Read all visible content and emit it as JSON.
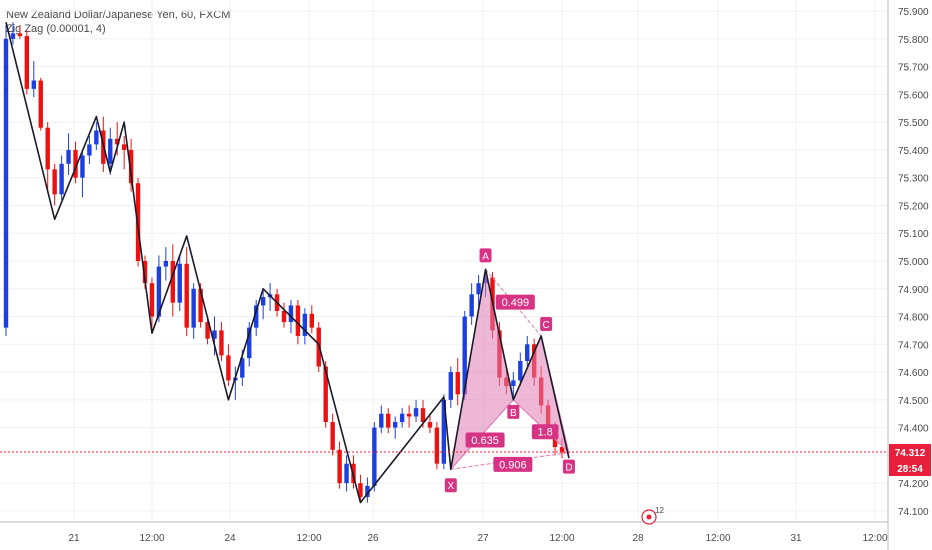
{
  "header": {
    "symbol_line": "New Zealand Dollar/Japanese Yen, 60, FXCM",
    "indicator_line": "Zig Zag (0.00001, 4)"
  },
  "chart_data": {
    "type": "candlestick",
    "price_axis": {
      "ticks": [
        "75.900",
        "75.800",
        "75.700",
        "75.600",
        "75.500",
        "75.400",
        "75.300",
        "75.200",
        "75.100",
        "75.000",
        "74.900",
        "74.800",
        "74.700",
        "74.600",
        "74.500",
        "74.400",
        "74.300",
        "74.200",
        "74.100"
      ],
      "ylim": [
        74.06,
        75.94
      ]
    },
    "time_axis": {
      "ticks": [
        "21",
        "12:00",
        "24",
        "12:00",
        "26",
        "27",
        "12:00",
        "28",
        "12:00",
        "31",
        "12:00"
      ],
      "xlim": [
        0,
        91
      ]
    },
    "current_price": {
      "label": "74.312",
      "value": 74.312,
      "color": "#e91e3a"
    },
    "countdown": {
      "label": "28:54"
    },
    "colors": {
      "up": "#1e3fe0",
      "down": "#ee1111",
      "zigzag": "#1a1a2a",
      "pattern": "#d63384",
      "pattern_fill": "#e07bb5",
      "grid": "#eef0f3"
    },
    "candles": [
      [
        74.76,
        75.85,
        74.73,
        75.8
      ],
      [
        75.8,
        75.86,
        75.78,
        75.82
      ],
      [
        75.82,
        75.85,
        75.8,
        75.81
      ],
      [
        75.81,
        75.83,
        75.6,
        75.62
      ],
      [
        75.62,
        75.72,
        75.59,
        75.65
      ],
      [
        75.65,
        75.66,
        75.47,
        75.48
      ],
      [
        75.48,
        75.5,
        75.25,
        75.33
      ],
      [
        75.33,
        75.35,
        75.2,
        75.24
      ],
      [
        75.24,
        75.38,
        75.22,
        75.35
      ],
      [
        75.35,
        75.46,
        75.31,
        75.4
      ],
      [
        75.4,
        75.43,
        75.28,
        75.3
      ],
      [
        75.3,
        75.4,
        75.23,
        75.38
      ],
      [
        75.38,
        75.45,
        75.35,
        75.42
      ],
      [
        75.42,
        75.5,
        75.4,
        75.47
      ],
      [
        75.47,
        75.52,
        75.32,
        75.35
      ],
      [
        75.35,
        75.48,
        75.31,
        75.44
      ],
      [
        75.44,
        75.5,
        75.38,
        75.42
      ],
      [
        75.42,
        75.45,
        75.33,
        75.4
      ],
      [
        75.4,
        75.44,
        75.25,
        75.28
      ],
      [
        75.28,
        75.3,
        74.98,
        75.0
      ],
      [
        75.0,
        75.02,
        74.9,
        74.92
      ],
      [
        74.92,
        74.94,
        74.74,
        74.8
      ],
      [
        74.8,
        75.02,
        74.78,
        74.98
      ],
      [
        74.98,
        75.05,
        74.93,
        75.0
      ],
      [
        75.0,
        75.06,
        74.8,
        74.85
      ],
      [
        74.85,
        75.02,
        74.82,
        74.99
      ],
      [
        74.99,
        75.05,
        74.73,
        74.76
      ],
      [
        74.76,
        74.92,
        74.72,
        74.9
      ],
      [
        74.9,
        74.92,
        74.76,
        74.78
      ],
      [
        74.78,
        74.8,
        74.7,
        74.72
      ],
      [
        74.72,
        74.8,
        74.66,
        74.75
      ],
      [
        74.75,
        74.78,
        74.64,
        74.66
      ],
      [
        74.66,
        74.7,
        74.55,
        74.57
      ],
      [
        74.57,
        74.62,
        74.5,
        74.58
      ],
      [
        74.58,
        74.68,
        74.55,
        74.65
      ],
      [
        74.65,
        74.78,
        74.62,
        74.76
      ],
      [
        74.76,
        74.86,
        74.73,
        74.84
      ],
      [
        74.84,
        74.9,
        74.79,
        74.87
      ],
      [
        74.87,
        74.92,
        74.82,
        74.88
      ],
      [
        74.88,
        74.9,
        74.8,
        74.82
      ],
      [
        74.82,
        74.85,
        74.76,
        74.78
      ],
      [
        74.78,
        74.86,
        74.74,
        74.84
      ],
      [
        74.84,
        74.86,
        74.7,
        74.73
      ],
      [
        74.73,
        74.83,
        74.7,
        74.81
      ],
      [
        74.81,
        74.84,
        74.74,
        74.76
      ],
      [
        74.76,
        74.78,
        74.6,
        74.62
      ],
      [
        74.62,
        74.64,
        74.4,
        74.42
      ],
      [
        74.42,
        74.45,
        74.3,
        74.32
      ],
      [
        74.32,
        74.35,
        74.18,
        74.2
      ],
      [
        74.2,
        74.3,
        74.17,
        74.27
      ],
      [
        74.27,
        74.3,
        74.18,
        74.2
      ],
      [
        74.2,
        74.23,
        74.13,
        74.15
      ],
      [
        74.15,
        74.22,
        74.13,
        74.19
      ],
      [
        74.19,
        74.42,
        74.17,
        74.4
      ],
      [
        74.4,
        74.48,
        74.38,
        74.45
      ],
      [
        74.45,
        74.47,
        74.38,
        74.4
      ],
      [
        74.4,
        74.44,
        74.36,
        74.42
      ],
      [
        74.42,
        74.47,
        74.4,
        74.45
      ],
      [
        74.45,
        74.48,
        74.4,
        74.44
      ],
      [
        74.44,
        74.5,
        74.42,
        74.47
      ],
      [
        74.47,
        74.5,
        74.4,
        74.42
      ],
      [
        74.42,
        74.45,
        74.38,
        74.4
      ],
      [
        74.4,
        74.42,
        74.25,
        74.27
      ],
      [
        74.27,
        74.52,
        74.25,
        74.5
      ],
      [
        74.5,
        74.62,
        74.47,
        74.6
      ],
      [
        74.6,
        74.65,
        74.48,
        74.52
      ],
      [
        74.52,
        74.82,
        74.5,
        74.8
      ],
      [
        74.8,
        74.92,
        74.77,
        74.88
      ],
      [
        74.88,
        74.95,
        74.84,
        74.92
      ],
      [
        74.92,
        74.97,
        74.87,
        74.94
      ],
      [
        74.94,
        74.96,
        74.72,
        74.75
      ],
      [
        74.75,
        74.78,
        74.55,
        74.58
      ],
      [
        74.58,
        74.62,
        74.52,
        74.55
      ],
      [
        74.55,
        74.6,
        74.5,
        74.57
      ],
      [
        74.57,
        74.67,
        74.55,
        74.64
      ],
      [
        74.64,
        74.73,
        74.62,
        74.7
      ],
      [
        74.7,
        74.72,
        74.55,
        74.58
      ],
      [
        74.58,
        74.62,
        74.45,
        74.48
      ],
      [
        74.48,
        74.5,
        74.36,
        74.38
      ],
      [
        74.38,
        74.42,
        74.3,
        74.33
      ],
      [
        74.33,
        74.36,
        74.29,
        74.31
      ]
    ],
    "zigzag": [
      [
        0,
        75.86
      ],
      [
        7,
        75.15
      ],
      [
        13,
        75.52
      ],
      [
        15,
        75.32
      ],
      [
        17,
        75.5
      ],
      [
        21,
        74.74
      ],
      [
        26,
        75.09
      ],
      [
        32,
        74.5
      ],
      [
        37,
        74.9
      ],
      [
        45,
        74.7
      ],
      [
        51,
        74.13
      ],
      [
        63,
        74.51
      ],
      [
        64,
        74.25
      ],
      [
        69,
        74.97
      ],
      [
        73,
        74.5
      ],
      [
        77,
        74.73
      ],
      [
        81,
        74.29
      ]
    ],
    "pattern": {
      "points": [
        {
          "label": "X",
          "x": 64,
          "y": 74.25
        },
        {
          "label": "A",
          "x": 69,
          "y": 74.97
        },
        {
          "label": "B",
          "x": 73,
          "y": 74.5
        },
        {
          "label": "C",
          "x": 77,
          "y": 74.73
        },
        {
          "label": "D",
          "x": 81,
          "y": 74.31
        }
      ],
      "ratios": [
        {
          "label": "0.499",
          "between": "A-C"
        },
        {
          "label": "0.635",
          "between": "X-B"
        },
        {
          "label": "1.8",
          "between": "B-D"
        },
        {
          "label": "0.906",
          "between": "X-D"
        }
      ]
    },
    "event_marker": {
      "label": "12",
      "x": 93
    }
  }
}
